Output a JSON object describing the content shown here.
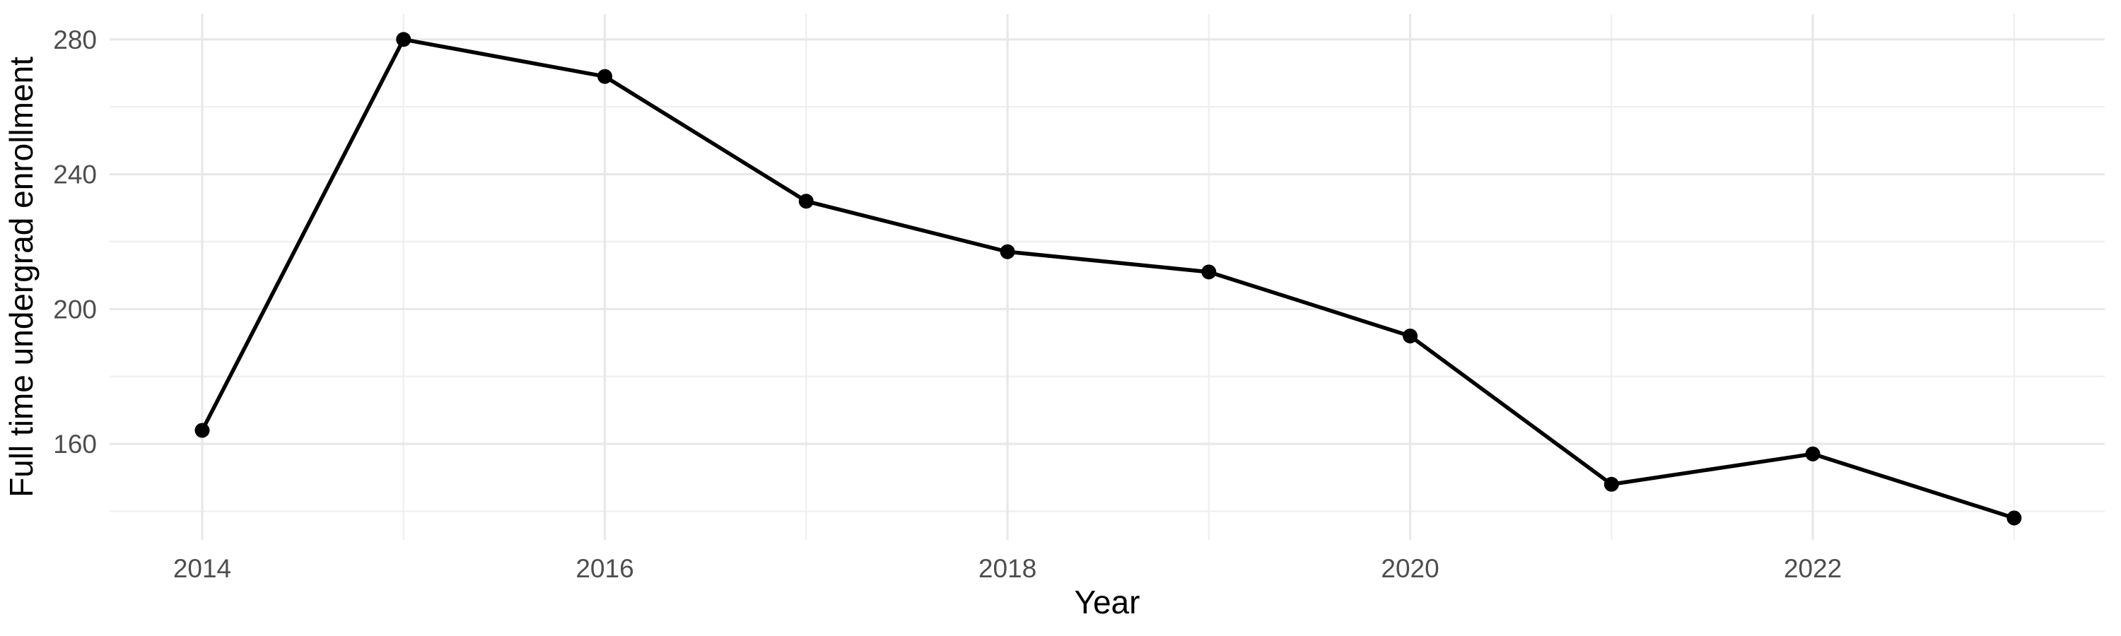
{
  "chart_data": {
    "type": "line",
    "title": "",
    "xlabel": "Year",
    "ylabel": "Full time undergrad enrollment",
    "x": [
      2014,
      2015,
      2016,
      2017,
      2018,
      2019,
      2020,
      2021,
      2022,
      2023
    ],
    "series": [
      {
        "name": "Full time undergrad enrollment",
        "values": [
          164,
          280,
          269,
          232,
          217,
          211,
          192,
          148,
          157,
          138
        ]
      }
    ],
    "x_tick_labels": [
      "2014",
      "2016",
      "2018",
      "2020",
      "2022"
    ],
    "x_ticks": [
      2014,
      2016,
      2018,
      2020,
      2022
    ],
    "x_minor_ticks": [
      2015,
      2017,
      2019,
      2021,
      2023
    ],
    "y_tick_labels": [
      "160",
      "200",
      "240",
      "280"
    ],
    "y_ticks": [
      160,
      200,
      240,
      280
    ],
    "y_minor_ticks": [
      140,
      180,
      220,
      260
    ],
    "xlim": [
      2013.54,
      2023.45
    ],
    "ylim": [
      131.5,
      287.5
    ],
    "grid": "on",
    "legend": "none",
    "background_color": "#FFFFFF",
    "line_color": "#000000",
    "point_color": "#000000",
    "grid_major_color": "#E8E8E8",
    "grid_minor_color": "#F0F0F0",
    "tick_label_color": "#4D4D4D",
    "axis_title_color": "#000000"
  }
}
